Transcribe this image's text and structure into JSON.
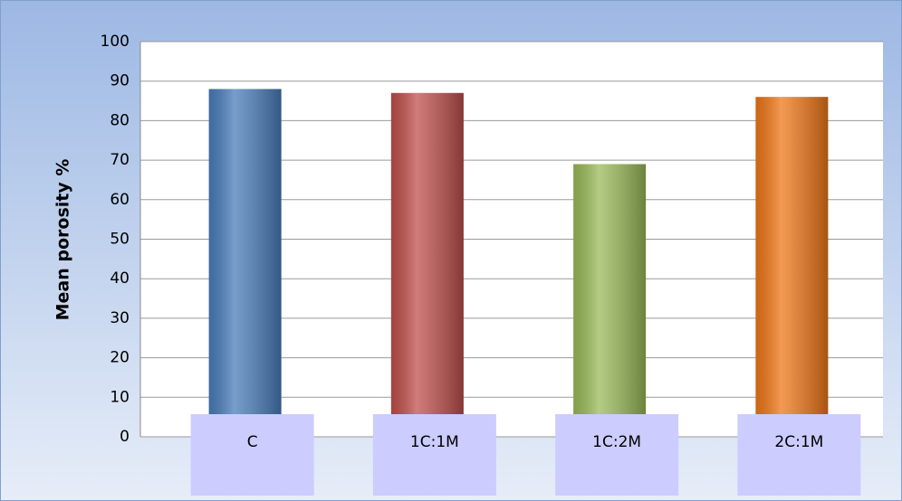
{
  "chart_data": {
    "type": "bar",
    "y_label": "Mean porosity %",
    "categories": [
      "C",
      "1C:1M",
      "1C:2M",
      "2C:1M"
    ],
    "values": [
      88,
      87,
      69,
      86
    ],
    "colors": [
      "#4a7ebb",
      "#c0504d",
      "#9bbb59",
      "#f07818"
    ],
    "ylim": [
      0,
      100
    ],
    "yticks": [
      0,
      10,
      20,
      30,
      40,
      50,
      60,
      70,
      80,
      90,
      100
    ],
    "grid": true
  }
}
